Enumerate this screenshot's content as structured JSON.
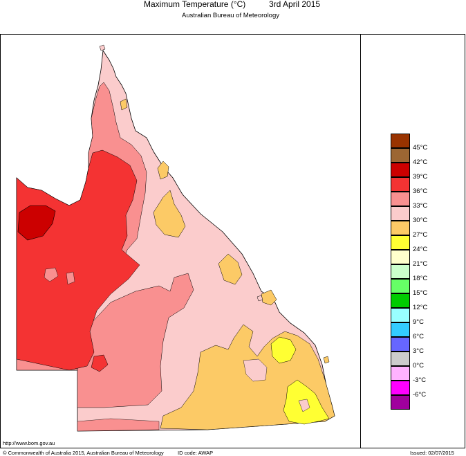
{
  "header": {
    "title": "Maximum Temperature (°C)",
    "date": "3rd April 2015",
    "agency": "Australian Bureau of Meteorology"
  },
  "legend": {
    "entries": [
      {
        "label": "45°C",
        "color": "#993300"
      },
      {
        "label": "42°C",
        "color": "#9c6633"
      },
      {
        "label": "39°C",
        "color": "#cc0000"
      },
      {
        "label": "36°C",
        "color": "#f43333"
      },
      {
        "label": "33°C",
        "color": "#f99090"
      },
      {
        "label": "30°C",
        "color": "#fbcccc"
      },
      {
        "label": "27°C",
        "color": "#fcca66"
      },
      {
        "label": "24°C",
        "color": "#ffff33"
      },
      {
        "label": "21°C",
        "color": "#ffffcc"
      },
      {
        "label": "18°C",
        "color": "#ccffcc"
      },
      {
        "label": "15°C",
        "color": "#66ff66"
      },
      {
        "label": "12°C",
        "color": "#00cc00"
      },
      {
        "label": "9°C",
        "color": "#99ffff"
      },
      {
        "label": "6°C",
        "color": "#33ccff"
      },
      {
        "label": "3°C",
        "color": "#6666ff"
      },
      {
        "label": "0°C",
        "color": "#cccccc"
      },
      {
        "label": "-3°C",
        "color": "#ffb3ff"
      },
      {
        "label": "-6°C",
        "color": "#ff00ff"
      },
      {
        "label": "",
        "color": "#a0009d"
      }
    ]
  },
  "footer": {
    "url": "http://www.bom.gov.au",
    "copyright": "© Commonwealth of Australia 2015, Australian Bureau of Meteorology",
    "id_code": "ID code: AWAP",
    "issued": "Issued: 02/07/2015"
  }
}
